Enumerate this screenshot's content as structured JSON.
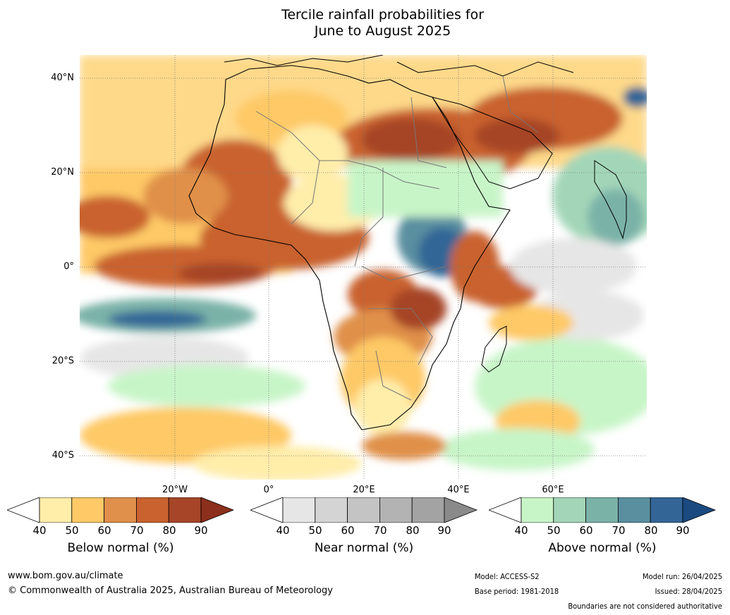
{
  "title": {
    "line1": "Tercile rainfall probabilities for",
    "line2": "June to August 2025"
  },
  "map": {
    "lat_labels": [
      "40°N",
      "20°N",
      "0°",
      "20°S",
      "40°S"
    ],
    "lon_labels": [
      "20°W",
      "0°",
      "20°E",
      "40°E",
      "60°E"
    ]
  },
  "colorbars": [
    {
      "title": "Below normal (%)",
      "ticks": [
        "40",
        "50",
        "60",
        "70",
        "80",
        "90"
      ],
      "colors": [
        "#ffedaa",
        "#fec966",
        "#e0904a",
        "#c9622f",
        "#a64527",
        "#8c2f1c"
      ]
    },
    {
      "title": "Near normal (%)",
      "ticks": [
        "40",
        "50",
        "60",
        "70",
        "80",
        "90"
      ],
      "colors": [
        "#e6e6e6",
        "#d4d4d4",
        "#c4c4c4",
        "#b3b3b3",
        "#a3a3a3",
        "#8a8a8a"
      ]
    },
    {
      "title": "Above normal (%)",
      "ticks": [
        "40",
        "50",
        "60",
        "70",
        "80",
        "90"
      ],
      "colors": [
        "#c8f5c8",
        "#a3d6b8",
        "#7ab2a8",
        "#5a8fa0",
        "#336696",
        "#1a4a80"
      ]
    }
  ],
  "footer": {
    "website": "www.bom.gov.au/climate",
    "copyright": "© Commonwealth of Australia 2025, Australian Bureau of Meteorology",
    "model": "Model: ACCESS-S2",
    "base_period": "Base period: 1981-2018",
    "model_run": "Model run: 26/04/2025",
    "issued": "Issued: 28/04/2025",
    "disclaimer": "Boundaries are not considered authoritative"
  }
}
